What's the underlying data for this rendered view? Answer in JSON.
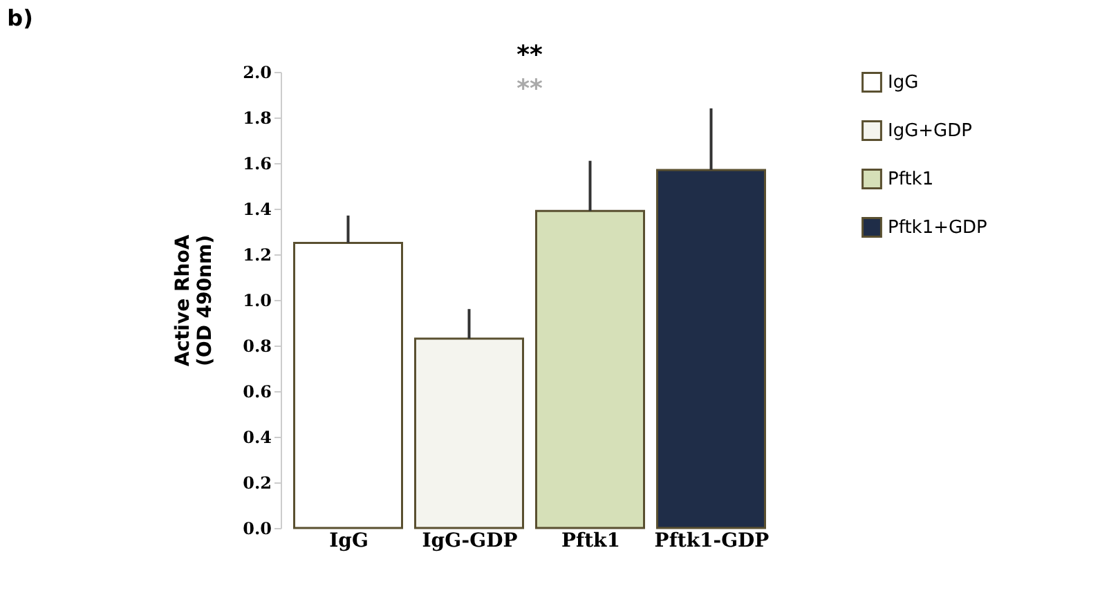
{
  "chart_data": {
    "type": "bar",
    "title": "b)",
    "ylabel": "Active RhoA\n(OD 490nm)",
    "categories": [
      "IgG",
      "IgG-GDP",
      "Pftk1",
      "Pftk1-GDP"
    ],
    "series": [
      {
        "name": "IgG",
        "color": "#ffffff",
        "values": [
          1.25,
          null,
          null,
          null
        ],
        "errors": [
          [
            1.25,
            1.37
          ],
          null,
          null,
          null
        ]
      },
      {
        "name": "IgG+GDP",
        "color": "#f4f4ee",
        "values": [
          null,
          0.83,
          null,
          null
        ],
        "errors": [
          null,
          [
            0.83,
            0.96
          ],
          null,
          null
        ]
      },
      {
        "name": "Pftk1",
        "color": "#d6e0b8",
        "values": [
          null,
          null,
          1.39,
          null
        ],
        "errors": [
          null,
          null,
          [
            1.39,
            1.61
          ],
          null
        ]
      },
      {
        "name": "Pftk1+GDP",
        "color": "#1f2d48",
        "values": [
          null,
          null,
          null,
          1.57
        ],
        "errors": [
          null,
          null,
          null,
          [
            1.57,
            1.84
          ]
        ]
      }
    ],
    "ylim": [
      0,
      2.0
    ],
    "yticks": [
      {
        "value": 0,
        "label": "0.0"
      },
      {
        "value": 0.2,
        "label": "0.2"
      },
      {
        "value": 0.4,
        "label": "0.4"
      },
      {
        "value": 0.6,
        "label": "0.6"
      },
      {
        "value": 0.8,
        "label": "0.8"
      },
      {
        "value": 1.0,
        "label": "1.0"
      },
      {
        "value": 1.2,
        "label": "1.2"
      },
      {
        "value": 1.4,
        "label": "1.4"
      },
      {
        "value": 1.6,
        "label": "1.6"
      },
      {
        "value": 1.8,
        "label": "1.8"
      },
      {
        "value": 2.0,
        "label": "2.0"
      }
    ],
    "annotations": [
      "**",
      "**"
    ],
    "grid": false,
    "legend": "right"
  }
}
